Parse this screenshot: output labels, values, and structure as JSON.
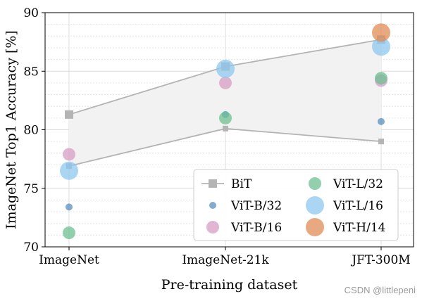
{
  "chart_data": {
    "type": "scatter",
    "title": "",
    "xlabel": "Pre-training dataset",
    "ylabel": "ImageNet Top1 Accuracy [%]",
    "categories": [
      "ImageNet",
      "ImageNet-21k",
      "JFT-300M"
    ],
    "ylim": [
      70,
      90
    ],
    "yticks": [
      70,
      75,
      80,
      85,
      90
    ],
    "grid": true,
    "legend_position": "bottom-right",
    "legend_columns": 2,
    "bit_band": {
      "name": "BiT",
      "upper": [
        81.3,
        85.4,
        87.7
      ],
      "lower": [
        76.9,
        80.1,
        79.0
      ],
      "line_color": "#b4b4b4",
      "fill_color": "#f2f2f2"
    },
    "series": [
      {
        "name": "ViT-B/32",
        "color": "#5a8fbe",
        "size": "small",
        "values": [
          73.4,
          81.3,
          80.7
        ]
      },
      {
        "name": "ViT-B/16",
        "color": "#d79ec3",
        "size": "medium",
        "values": [
          77.9,
          84.0,
          84.2
        ]
      },
      {
        "name": "ViT-L/32",
        "color": "#6cbf92",
        "size": "medium",
        "values": [
          71.2,
          81.0,
          84.4
        ]
      },
      {
        "name": "ViT-L/16",
        "color": "#8ec8ef",
        "size": "large",
        "values": [
          76.5,
          85.2,
          87.1
        ]
      },
      {
        "name": "ViT-H/14",
        "color": "#e08c55",
        "size": "large",
        "values": [
          null,
          null,
          88.3
        ]
      }
    ]
  },
  "watermark": "CSDN @littlepeni"
}
